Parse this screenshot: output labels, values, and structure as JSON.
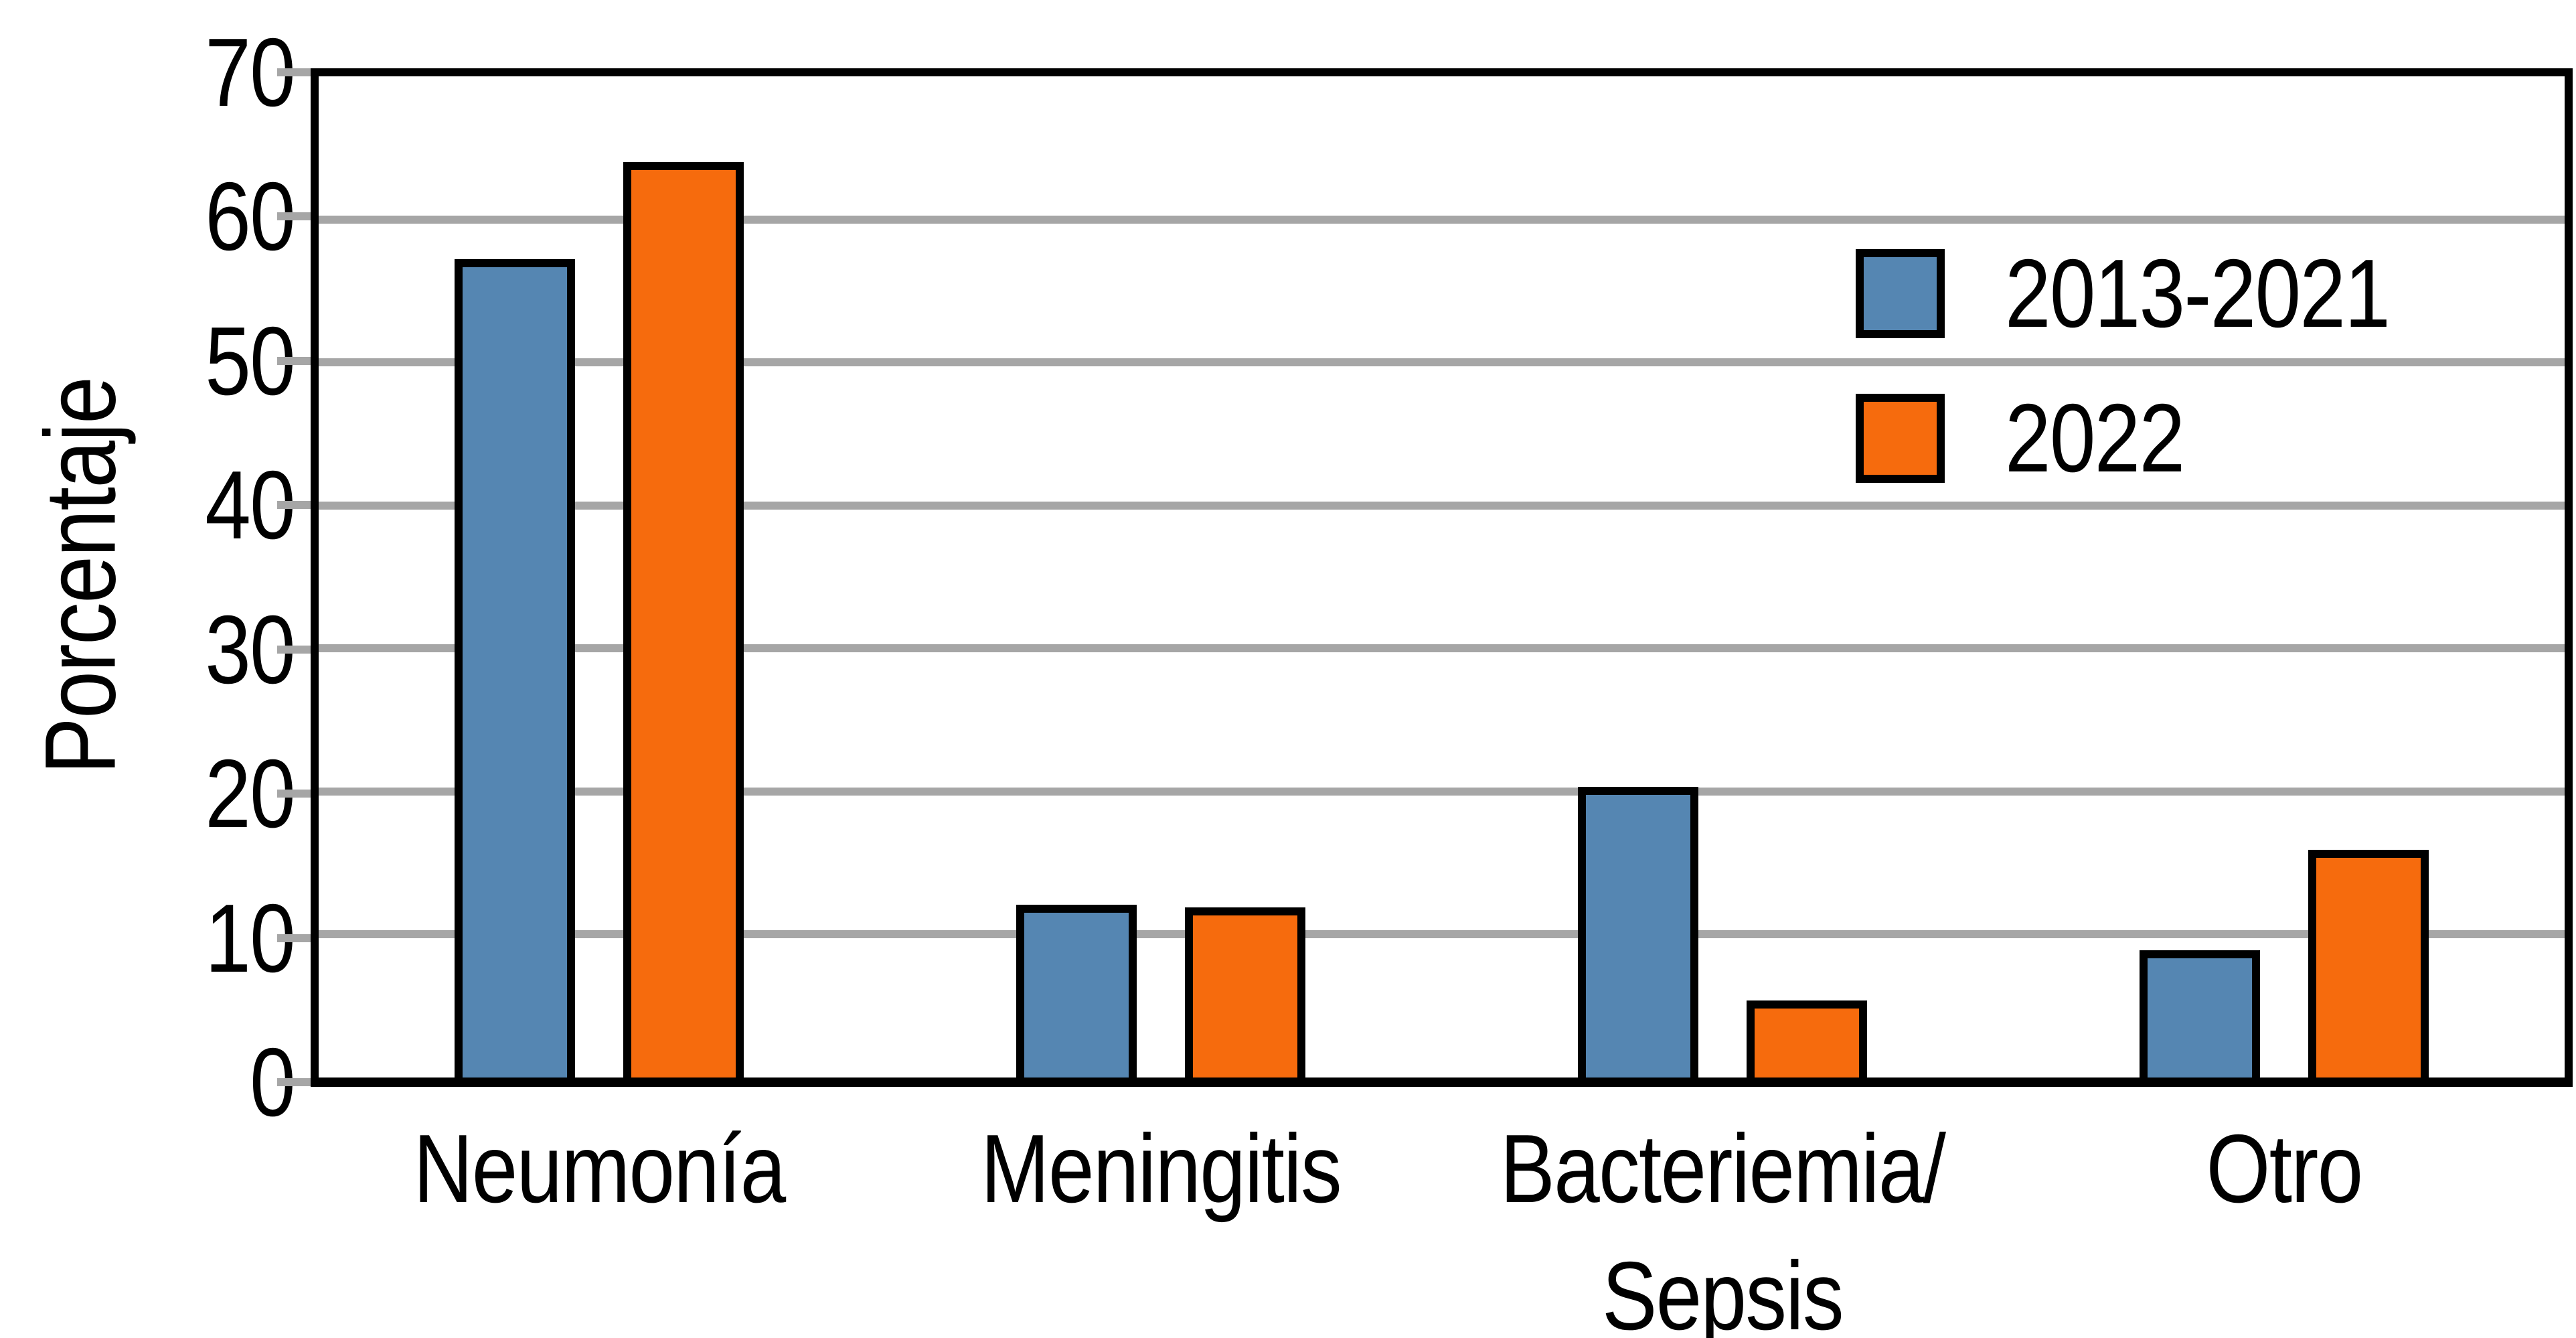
{
  "figure": {
    "background": "#FFFFFF"
  },
  "chart_data": {
    "type": "bar",
    "title": "",
    "xlabel": "",
    "ylabel": "Porcentaje",
    "ylim": [
      0,
      70
    ],
    "yticks": [
      0,
      10,
      20,
      30,
      40,
      50,
      60,
      70
    ],
    "grid": true,
    "legend_position": "upper right",
    "categories": [
      "Neumonía",
      "Meningitis",
      "Bacteriemia/\nSepsis",
      "Otro"
    ],
    "series": [
      {
        "name": "2013-2021",
        "color": "#5586B2",
        "values": [
          57.2,
          12.1,
          20.3,
          8.9
        ]
      },
      {
        "name": "2022",
        "color": "#F66B0D",
        "values": [
          64.0,
          11.9,
          5.4,
          15.9
        ]
      }
    ],
    "colors": {
      "gridline": "#A6A6A6",
      "axis_border": "#000000",
      "text": "#000000",
      "plot_background": "#FFFFFF"
    }
  }
}
